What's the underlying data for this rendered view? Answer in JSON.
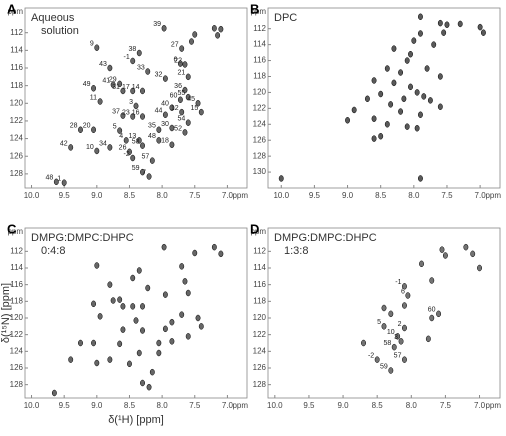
{
  "chart_data": [
    {
      "type": "scatter",
      "panel_label": "A",
      "title": [
        "Aqueous",
        "solution"
      ],
      "color": "#333333",
      "x_unit": "ppm",
      "y_unit": "ppm",
      "xlim": [
        10.1,
        6.7
      ],
      "ylim": [
        109.2,
        129.6
      ],
      "xticks": [
        {
          "value": 10,
          "label": "10.0"
        },
        9.5,
        {
          "value": 9,
          "label": "9.0"
        },
        8.5,
        {
          "value": 8,
          "label": "8.0"
        },
        7.5,
        {
          "value": 7,
          "label": "7.0"
        }
      ],
      "yticks": [
        112,
        114,
        116,
        118,
        120,
        122,
        124,
        126,
        128
      ],
      "x": [
        7.97,
        9.0,
        8.35,
        7.7,
        8.45,
        8.8,
        8.22,
        7.65,
        7.72,
        7.95,
        7.6,
        8.75,
        8.65,
        9.05,
        8.6,
        8.45,
        8.3,
        7.65,
        7.72,
        7.6,
        7.45,
        8.95,
        8.4,
        7.85,
        7.7,
        7.4,
        7.95,
        8.6,
        8.45,
        8.3,
        7.6,
        7.85,
        8.05,
        7.65,
        9.25,
        9.05,
        8.65,
        8.55,
        8.35,
        8.05,
        7.85,
        8.8,
        9.4,
        8.3,
        9.0,
        8.5,
        8.45,
        8.15,
        8.3,
        8.2,
        9.5,
        9.62,
        7.2,
        7.1,
        7.15,
        7.5,
        7.55
      ],
      "y": [
        111.5,
        113.7,
        114.3,
        113.8,
        115.2,
        116.0,
        116.4,
        115.6,
        115.5,
        117.2,
        117.0,
        117.9,
        117.8,
        118.3,
        118.6,
        118.6,
        118.6,
        118.5,
        119.6,
        119.3,
        120.0,
        119.8,
        120.3,
        120.5,
        121.0,
        121.0,
        121.3,
        121.4,
        121.5,
        121.5,
        122.2,
        122.8,
        123.0,
        123.3,
        123.0,
        123.0,
        123.1,
        124.2,
        124.2,
        124.2,
        124.7,
        125.0,
        125.0,
        124.8,
        125.4,
        125.5,
        126.2,
        126.5,
        127.8,
        128.3,
        129.0,
        128.9,
        111.5,
        111.6,
        112.3,
        112.2,
        113.0
      ],
      "point_labels": [
        "39",
        "9",
        "38",
        "27",
        "-1",
        "43",
        "33",
        "22",
        "6",
        "32",
        "21",
        "41",
        "29",
        "49",
        "31",
        "17",
        "14",
        "36",
        "60",
        "55",
        "45",
        "11",
        "3",
        "40",
        "12",
        "15",
        "44",
        "37",
        "23",
        "16",
        "54",
        "30",
        "35",
        "52",
        "28",
        "20",
        "5",
        "4",
        "13",
        "48",
        "18",
        "34",
        "42",
        "58",
        "10",
        "26",
        "-2",
        "57",
        "59",
        "7",
        "1",
        "48",
        null,
        null,
        null,
        null,
        null
      ]
    },
    {
      "type": "scatter",
      "panel_label": "B",
      "title": [
        "DPC"
      ],
      "color": "#222222",
      "x_unit": "ppm",
      "y_unit": "ppm",
      "xlim": [
        10.2,
        6.7
      ],
      "ylim": [
        109.4,
        132.0
      ],
      "xticks": [
        {
          "value": 10,
          "label": "10.0"
        },
        9.5,
        {
          "value": 9,
          "label": "9.0"
        },
        8.5,
        {
          "value": 8,
          "label": "8.0"
        },
        7.5,
        {
          "value": 7,
          "label": "7.0"
        }
      ],
      "yticks": [
        112,
        114,
        116,
        118,
        120,
        122,
        124,
        126,
        128,
        130
      ],
      "x": [
        7.9,
        7.6,
        7.5,
        7.3,
        7.0,
        6.95,
        7.55,
        7.9,
        8.0,
        7.7,
        8.3,
        8.05,
        8.1,
        8.4,
        8.2,
        7.8,
        7.6,
        8.6,
        8.3,
        8.05,
        7.95,
        7.85,
        8.5,
        8.7,
        8.15,
        7.75,
        7.6,
        8.35,
        8.9,
        8.2,
        7.9,
        8.6,
        9.0,
        8.4,
        8.1,
        7.95,
        8.5,
        8.6,
        10.0,
        7.9
      ],
      "y": [
        110.5,
        111.3,
        111.5,
        111.4,
        111.8,
        112.5,
        112.5,
        112.6,
        113.5,
        114.0,
        114.5,
        115.2,
        116.0,
        117.0,
        117.5,
        117.0,
        118.0,
        118.5,
        118.8,
        119.3,
        120.0,
        120.5,
        120.2,
        120.8,
        120.8,
        121.0,
        121.8,
        121.5,
        122.2,
        122.4,
        122.8,
        123.3,
        123.5,
        124.0,
        124.3,
        124.5,
        125.5,
        125.8,
        130.8,
        130.8
      ]
    },
    {
      "type": "scatter",
      "panel_label": "C",
      "title": [
        "DMPG:DMPC:DHPC",
        "0:4:8"
      ],
      "color": "#333333",
      "x_unit": "ppm",
      "y_unit": "ppm",
      "xlabel": "δ(¹H) [ppm]",
      "ylabel": "δ(¹⁵N) [ppm]",
      "xlim": [
        10.1,
        6.7
      ],
      "ylim": [
        109.2,
        129.6
      ],
      "xticks": [
        {
          "value": 10,
          "label": "10.0"
        },
        9.5,
        {
          "value": 9,
          "label": "9.0"
        },
        8.5,
        {
          "value": 8,
          "label": "8.0"
        },
        7.5,
        {
          "value": 7,
          "label": "7.0"
        }
      ],
      "yticks": [
        112,
        114,
        116,
        118,
        120,
        122,
        124,
        126,
        128
      ],
      "x": [
        7.97,
        7.2,
        7.1,
        7.5,
        9.0,
        8.35,
        7.7,
        8.45,
        8.8,
        8.22,
        7.65,
        7.95,
        7.6,
        8.75,
        8.65,
        9.05,
        8.6,
        8.45,
        8.3,
        7.7,
        7.45,
        8.95,
        8.4,
        7.85,
        7.4,
        7.95,
        8.6,
        8.3,
        7.6,
        7.85,
        8.05,
        9.25,
        9.05,
        8.65,
        8.35,
        8.05,
        8.8,
        9.4,
        9.0,
        8.5,
        8.15,
        8.3,
        8.2,
        9.65
      ],
      "y": [
        111.5,
        111.5,
        112.3,
        112.2,
        113.7,
        114.3,
        113.8,
        115.2,
        116.0,
        116.4,
        115.6,
        117.2,
        117.0,
        117.9,
        117.8,
        118.3,
        118.6,
        118.6,
        118.6,
        119.6,
        120.0,
        119.8,
        120.3,
        120.5,
        121.0,
        121.3,
        121.4,
        121.5,
        122.2,
        122.8,
        123.0,
        123.0,
        123.0,
        123.1,
        124.2,
        124.2,
        125.0,
        125.0,
        125.4,
        125.5,
        126.5,
        127.8,
        128.3,
        129.0
      ]
    },
    {
      "type": "scatter",
      "panel_label": "D",
      "title": [
        "DMPG:DMPC:DHPC",
        "1:3:8"
      ],
      "color": "#444444",
      "x_unit": "ppm",
      "y_unit": "ppm",
      "xlim": [
        10.1,
        6.7
      ],
      "ylim": [
        109.2,
        129.6
      ],
      "xticks": [
        {
          "value": 10,
          "label": "10.0"
        },
        9.5,
        {
          "value": 9,
          "label": "9.0"
        },
        8.5,
        {
          "value": 8,
          "label": "8.0"
        },
        7.5,
        {
          "value": 7,
          "label": "7.0"
        }
      ],
      "yticks": [
        112,
        114,
        116,
        118,
        120,
        122,
        124,
        126,
        128
      ],
      "x": [
        8.1,
        8.05,
        7.6,
        8.4,
        8.1,
        8.2,
        8.15,
        8.25,
        8.1,
        8.5,
        8.3,
        7.55,
        7.2,
        7.1,
        7.5,
        7.85,
        7.7,
        8.1,
        8.4,
        8.3,
        7.7,
        7.75,
        7.0,
        8.7
      ],
      "y": [
        116.2,
        117.3,
        119.5,
        121.0,
        121.2,
        122.2,
        122.8,
        123.5,
        125.0,
        125.0,
        126.3,
        111.8,
        111.5,
        112.3,
        112.5,
        113.5,
        115.5,
        118.5,
        118.8,
        119.5,
        120.0,
        122.5,
        114.0,
        123.0
      ],
      "point_labels": [
        "-1",
        "6",
        "60",
        "5",
        "2",
        "10",
        "3",
        "58",
        "57",
        "-2",
        "59",
        null,
        null,
        null,
        null,
        null,
        null,
        null,
        null,
        null,
        null,
        null,
        null,
        null
      ]
    }
  ]
}
